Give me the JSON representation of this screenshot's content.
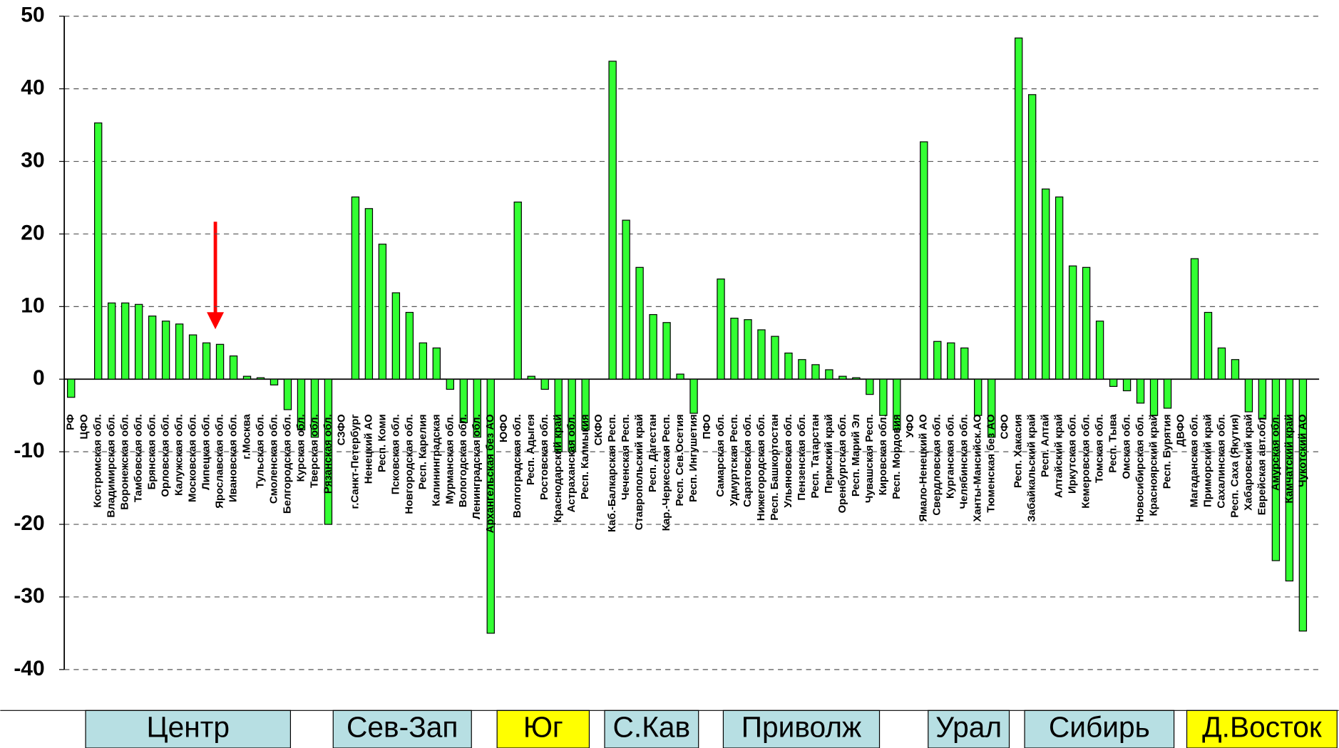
{
  "chart_data": {
    "type": "bar",
    "categories": [
      "РФ",
      "ЦФО",
      "Костромская обл.",
      "Владимирская обл.",
      "Воронежская обл.",
      "Тамбовская обл.",
      "Брянская обл.",
      "Орловская обл.",
      "Калужская обл.",
      "Московская обл.",
      "Липецкая обл.",
      "Ярославская обл.",
      "Ивановская обл.",
      "г.Москва",
      "Тульская обл.",
      "Смоленская обл.",
      "Белгородская обл.",
      "Курская обл.",
      "Тверская обл.",
      "Рязанская обл.",
      "СЗФО",
      "г.Санкт-Петербург",
      "Ненецкий АО",
      "Респ. Коми",
      "Псковская обл.",
      "Новгородская обл.",
      "Респ. Карелия",
      "Калининградская",
      "Мурманская обл.",
      "Вологодская обл.",
      "Ленинградская обл.",
      "Архангельская без АО",
      "ЮФО",
      "Волгоградская обл.",
      "Респ. Адыгея",
      "Ростовская обл.",
      "Краснодарский край",
      "Астраханская обл.",
      "Респ. Калмыкия",
      "СКФО",
      "Каб.-Балкарская Респ.",
      "Чеченская Респ.",
      "Ставропольский край",
      "Респ. Дагестан",
      "Кар.-Черкесская Респ.",
      "Респ. Сев.Осетия",
      "Респ. Ингушетия",
      "ПФО",
      "Самарская обл.",
      "Удмуртская Респ.",
      "Саратовская обл.",
      "Нижегородская обл.",
      "Респ. Башкортостан",
      "Ульяновская обл.",
      "Пензенская обл.",
      "Респ. Татарстан",
      "Пермский край",
      "Оренбургская обл.",
      "Респ. Марий Эл",
      "Чувашская Респ.",
      "Кировская обл.",
      "Респ. Мордовия",
      "УФО",
      "Ямало-Ненецкий АО",
      "Свердловская обл.",
      "Курганская обл.",
      "Челябинская обл.",
      "Ханты-Мансийск.АО",
      "Тюменская без АО",
      "СФО",
      "Респ. Хакасия",
      "Забайкальский край",
      "Респ. Алтай",
      "Алтайский край",
      "Иркутская обл.",
      "Кемеровская обл.",
      "Томская обл.",
      "Респ. Тыва",
      "Омская обл.",
      "Новосибирская обл.",
      "Красноярский край",
      "Респ. Бурятия",
      "ДВФО",
      "Магаданская обл.",
      "Приморский край",
      "Сахалинская обл.",
      "Респ. Саха (Якутия)",
      "Хабаровский край",
      "Еврейская авт.обл.",
      "Амурская обл.",
      "Камчатский край",
      "Чукотский АО"
    ],
    "values": [
      -2.5,
      null,
      35.3,
      10.5,
      10.5,
      10.3,
      8.7,
      8.0,
      7.6,
      6.1,
      5.0,
      4.8,
      3.2,
      0.4,
      0.2,
      -0.8,
      -4.2,
      -7,
      -8,
      -20,
      null,
      25.1,
      23.5,
      18.6,
      11.9,
      9.2,
      5.0,
      4.3,
      -1.4,
      -6,
      -8,
      -35,
      null,
      24.4,
      0.4,
      -1.4,
      -10,
      -10,
      -7,
      null,
      43.8,
      21.9,
      15.4,
      8.9,
      7.8,
      0.7,
      -4.7,
      null,
      13.8,
      8.4,
      8.2,
      6.8,
      5.9,
      3.6,
      2.7,
      2.0,
      1.3,
      0.4,
      0.2,
      -2.1,
      -5,
      -7,
      null,
      32.7,
      5.2,
      5.0,
      4.3,
      -5,
      -8,
      null,
      47.0,
      39.2,
      26.2,
      25.1,
      15.6,
      15.4,
      8.0,
      -1.0,
      -1.6,
      -3.3,
      -5,
      -4,
      null,
      16.6,
      9.2,
      4.3,
      2.7,
      -4.5,
      -5.5,
      -25,
      -27.8,
      -34.7
    ],
    "color": "#33ff33",
    "ylim": [
      -40,
      50
    ],
    "yticks": [
      -40,
      -30,
      -20,
      -10,
      0,
      10,
      20,
      30,
      40,
      50
    ],
    "grid": true,
    "regions": [
      {
        "name": "Центр",
        "color": "#b7dfe3"
      },
      {
        "name": "Сев-Зап",
        "color": "#b7dfe3"
      },
      {
        "name": "Юг",
        "color": "#ffff00"
      },
      {
        "name": "С.Кав",
        "color": "#b7dfe3"
      },
      {
        "name": "Приволж",
        "color": "#b7dfe3"
      },
      {
        "name": "Урал",
        "color": "#b7dfe3"
      },
      {
        "name": "Сибирь",
        "color": "#b7dfe3"
      },
      {
        "name": "Д.Восток",
        "color": "#ffff00"
      }
    ]
  }
}
